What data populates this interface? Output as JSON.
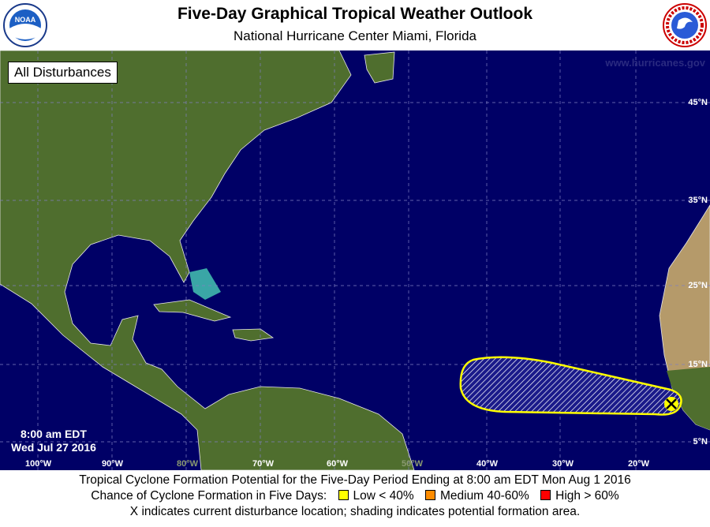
{
  "header": {
    "title": "Five-Day Graphical Tropical Weather Outlook",
    "subtitle": "National Hurricane Center  Miami, Florida",
    "left_logo": "NOAA",
    "right_logo": "NATIONAL WEATHER SERVICE"
  },
  "map": {
    "filter_label": "All Disturbances",
    "watermark": "www.hurricanes.gov",
    "issued_time": "8:00 am EDT",
    "issued_date": "Wed Jul 27 2016",
    "longitudes": [
      "100°W",
      "90°W",
      "80°W",
      "70°W",
      "60°W",
      "50°W",
      "40°W",
      "30°W",
      "20°W"
    ],
    "latitudes": [
      "45°N",
      "35°N",
      "25°N",
      "15°N",
      "5°N"
    ],
    "colors": {
      "ocean": "#000066",
      "land": "#4f6e2e",
      "disturbance_outline": "#ffff00"
    },
    "disturbances": [
      {
        "marker": "x-icon",
        "chance": "Low < 40%"
      }
    ]
  },
  "footer": {
    "line1": "Tropical Cyclone Formation Potential for the Five-Day Period Ending at 8:00 am EDT Mon Aug 1 2016",
    "legend_label": "Chance of Cyclone Formation in Five Days:",
    "legend": [
      {
        "label": "Low < 40%",
        "color": "#ffff00"
      },
      {
        "label": "Medium 40-60%",
        "color": "#ff8c00"
      },
      {
        "label": "High > 60%",
        "color": "#ff0000"
      }
    ],
    "line3": "X indicates current disturbance location; shading indicates potential formation area."
  }
}
